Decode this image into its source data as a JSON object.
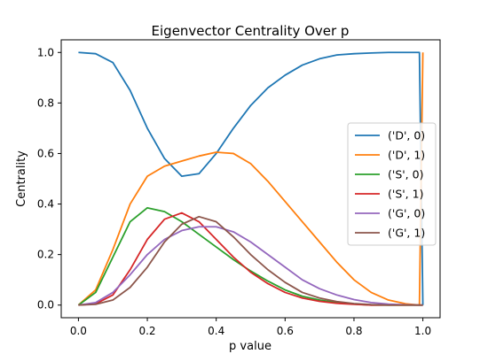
{
  "chart_data": {
    "type": "line",
    "title": "Eigenvector Centrality Over p",
    "xlabel": "p value",
    "ylabel": "Centrality",
    "xlim": [
      -0.05,
      1.05
    ],
    "ylim": [
      -0.05,
      1.05
    ],
    "xticks": [
      0.0,
      0.2,
      0.4,
      0.6,
      0.8,
      1.0
    ],
    "xtick_labels": [
      "0.0",
      "0.2",
      "0.4",
      "0.6",
      "0.8",
      "1.0"
    ],
    "yticks": [
      0.0,
      0.2,
      0.4,
      0.6,
      0.8,
      1.0
    ],
    "ytick_labels": [
      "0.0",
      "0.2",
      "0.4",
      "0.6",
      "0.8",
      "1.0"
    ],
    "grid": false,
    "legend_position": "center-right",
    "x": [
      0.0,
      0.05,
      0.1,
      0.15,
      0.2,
      0.25,
      0.3,
      0.35,
      0.4,
      0.45,
      0.5,
      0.55,
      0.6,
      0.65,
      0.7,
      0.75,
      0.8,
      0.85,
      0.9,
      0.95,
      0.99,
      1.0
    ],
    "series": [
      {
        "name": "('D', 0)",
        "color": "#1f77b4",
        "values": [
          1.0,
          0.995,
          0.96,
          0.85,
          0.7,
          0.58,
          0.51,
          0.52,
          0.6,
          0.7,
          0.79,
          0.86,
          0.91,
          0.95,
          0.975,
          0.99,
          0.995,
          0.998,
          1.0,
          1.0,
          1.0,
          0.0
        ]
      },
      {
        "name": "('D', 1)",
        "color": "#ff7f0e",
        "values": [
          0.0,
          0.06,
          0.22,
          0.4,
          0.51,
          0.55,
          0.57,
          0.59,
          0.605,
          0.6,
          0.56,
          0.49,
          0.41,
          0.33,
          0.25,
          0.17,
          0.1,
          0.05,
          0.02,
          0.005,
          0.0,
          1.0
        ]
      },
      {
        "name": "('S', 0)",
        "color": "#2ca02c",
        "values": [
          0.0,
          0.05,
          0.19,
          0.33,
          0.385,
          0.37,
          0.33,
          0.28,
          0.23,
          0.18,
          0.135,
          0.095,
          0.06,
          0.035,
          0.02,
          0.01,
          0.004,
          0.0,
          0.0,
          0.0,
          0.0,
          0.0
        ]
      },
      {
        "name": "('S', 1)",
        "color": "#d62728",
        "values": [
          0.0,
          0.005,
          0.04,
          0.14,
          0.26,
          0.34,
          0.365,
          0.33,
          0.26,
          0.19,
          0.13,
          0.085,
          0.05,
          0.028,
          0.015,
          0.007,
          0.003,
          0.0,
          0.0,
          0.0,
          0.0,
          0.0
        ]
      },
      {
        "name": "('G', 0)",
        "color": "#9467bd",
        "values": [
          0.0,
          0.01,
          0.05,
          0.12,
          0.2,
          0.26,
          0.295,
          0.31,
          0.31,
          0.29,
          0.25,
          0.2,
          0.15,
          0.1,
          0.065,
          0.04,
          0.022,
          0.01,
          0.004,
          0.001,
          0.0,
          0.0
        ]
      },
      {
        "name": "('G', 1)",
        "color": "#8c564b",
        "values": [
          0.0,
          0.003,
          0.02,
          0.07,
          0.15,
          0.25,
          0.32,
          0.35,
          0.33,
          0.27,
          0.2,
          0.14,
          0.09,
          0.05,
          0.028,
          0.014,
          0.006,
          0.002,
          0.0,
          0.0,
          0.0,
          0.0
        ]
      }
    ]
  }
}
